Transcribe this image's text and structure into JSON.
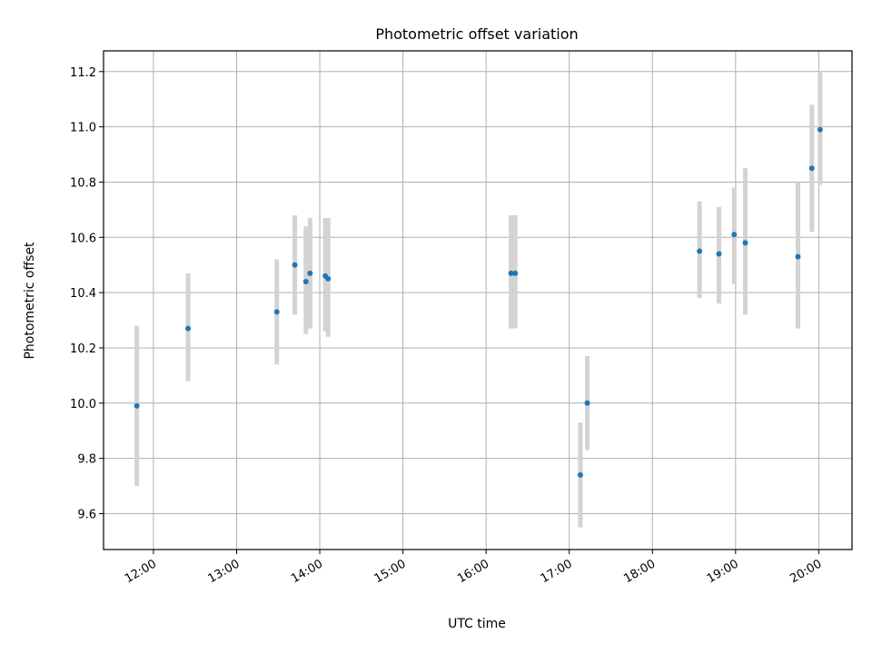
{
  "chart_data": {
    "type": "scatter",
    "title": "Photometric offset variation",
    "xlabel": "UTC time",
    "ylabel": "Photometric offset",
    "x_ticks": [
      "12:00",
      "13:00",
      "14:00",
      "15:00",
      "16:00",
      "17:00",
      "18:00",
      "19:00",
      "20:00"
    ],
    "y_ticks": [
      "9.6",
      "9.8",
      "10.0",
      "10.2",
      "10.4",
      "10.6",
      "10.8",
      "11.0",
      "11.2"
    ],
    "xlim": [
      "11:24",
      "20:24"
    ],
    "ylim": [
      9.47,
      11.275
    ],
    "grid": true,
    "marker_color": "#1f77b4",
    "errorbar_color": "#d3d3d3",
    "points": [
      {
        "x": "11:48",
        "y": 9.99,
        "yerr": [
          9.7,
          10.28
        ]
      },
      {
        "x": "12:25",
        "y": 10.27,
        "yerr": [
          10.08,
          10.47
        ]
      },
      {
        "x": "13:29",
        "y": 10.33,
        "yerr": [
          10.14,
          10.52
        ]
      },
      {
        "x": "13:42",
        "y": 10.5,
        "yerr": [
          10.32,
          10.68
        ]
      },
      {
        "x": "13:50",
        "y": 10.44,
        "yerr": [
          10.25,
          10.64
        ]
      },
      {
        "x": "13:53",
        "y": 10.47,
        "yerr": [
          10.27,
          10.67
        ]
      },
      {
        "x": "14:04",
        "y": 10.46,
        "yerr": [
          10.26,
          10.67
        ]
      },
      {
        "x": "14:06",
        "y": 10.45,
        "yerr": [
          10.24,
          10.67
        ]
      },
      {
        "x": "16:18",
        "y": 10.47,
        "yerr": [
          10.27,
          10.68
        ]
      },
      {
        "x": "16:21",
        "y": 10.47,
        "yerr": [
          10.27,
          10.68
        ]
      },
      {
        "x": "17:08",
        "y": 9.74,
        "yerr": [
          9.55,
          9.93
        ]
      },
      {
        "x": "17:13",
        "y": 10.0,
        "yerr": [
          9.83,
          10.17
        ]
      },
      {
        "x": "18:34",
        "y": 10.55,
        "yerr": [
          10.38,
          10.73
        ]
      },
      {
        "x": "18:48",
        "y": 10.54,
        "yerr": [
          10.36,
          10.71
        ]
      },
      {
        "x": "18:59",
        "y": 10.61,
        "yerr": [
          10.43,
          10.78
        ]
      },
      {
        "x": "19:07",
        "y": 10.58,
        "yerr": [
          10.32,
          10.85
        ]
      },
      {
        "x": "19:45",
        "y": 10.53,
        "yerr": [
          10.27,
          10.8
        ]
      },
      {
        "x": "19:55",
        "y": 10.85,
        "yerr": [
          10.62,
          11.08
        ]
      },
      {
        "x": "20:01",
        "y": 10.99,
        "yerr": [
          10.79,
          11.2
        ]
      }
    ]
  }
}
